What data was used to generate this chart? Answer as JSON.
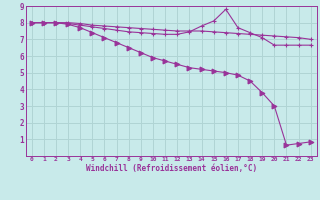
{
  "background_color": "#c8eaea",
  "grid_color": "#b0d4d4",
  "line_color": "#993399",
  "xlabel": "Windchill (Refroidissement éolien,°C)",
  "xlim": [
    -0.5,
    23.5
  ],
  "ylim": [
    0,
    9
  ],
  "yticks": [
    1,
    2,
    3,
    4,
    5,
    6,
    7,
    8,
    9
  ],
  "xticks": [
    0,
    1,
    2,
    3,
    4,
    5,
    6,
    7,
    8,
    9,
    10,
    11,
    12,
    13,
    14,
    15,
    16,
    17,
    18,
    19,
    20,
    21,
    22,
    23
  ],
  "lines": [
    {
      "x": [
        0,
        1,
        2,
        3,
        4,
        5,
        6,
        7,
        8,
        9,
        10,
        11,
        12,
        13,
        14,
        15,
        16,
        17,
        18,
        19,
        20,
        21,
        22,
        23
      ],
      "y": [
        8.0,
        8.0,
        8.0,
        8.0,
        7.95,
        7.85,
        7.8,
        7.75,
        7.7,
        7.65,
        7.6,
        7.55,
        7.5,
        7.5,
        7.5,
        7.45,
        7.4,
        7.35,
        7.3,
        7.25,
        7.2,
        7.15,
        7.1,
        7.0
      ],
      "marker": "+"
    },
    {
      "x": [
        0,
        1,
        2,
        3,
        4,
        5,
        6,
        7,
        8,
        9,
        10,
        11,
        12,
        13,
        14,
        15,
        16,
        17,
        18,
        19,
        20,
        21,
        22,
        23
      ],
      "y": [
        8.0,
        8.0,
        8.0,
        7.95,
        7.85,
        7.75,
        7.65,
        7.55,
        7.45,
        7.4,
        7.35,
        7.3,
        7.3,
        7.45,
        7.8,
        8.1,
        8.8,
        7.7,
        7.4,
        7.1,
        6.65,
        6.65,
        6.65,
        6.65
      ],
      "marker": "+"
    },
    {
      "x": [
        0,
        1,
        2,
        3,
        4,
        5,
        6,
        7,
        8,
        9,
        10,
        11,
        12,
        13,
        14,
        15,
        16,
        17,
        18,
        19,
        20,
        21,
        22,
        23
      ],
      "y": [
        8.0,
        8.0,
        8.0,
        7.9,
        7.7,
        7.4,
        7.1,
        6.8,
        6.5,
        6.2,
        5.9,
        5.7,
        5.5,
        5.3,
        5.2,
        5.1,
        5.0,
        4.85,
        4.5,
        3.8,
        3.0,
        0.65,
        0.75,
        0.85
      ],
      "marker": ">"
    }
  ]
}
